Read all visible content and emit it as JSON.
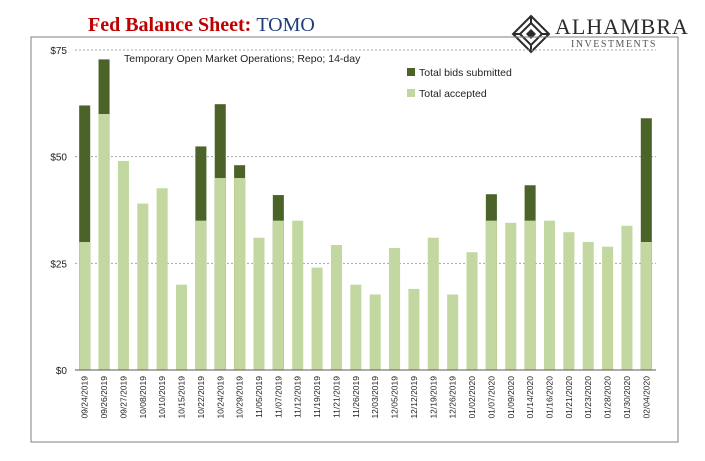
{
  "header": {
    "title_main": "Fed Balance Sheet",
    "title_sep": ": ",
    "title_sub": "TOMO"
  },
  "logo": {
    "brand": "ALHAMBRA",
    "tagline": "INVESTMENTS"
  },
  "colors": {
    "bids": "#4b6329",
    "accepted": "#c2d8a0",
    "title": "#c00000",
    "subtitle": "#1f3d7a"
  },
  "chart_data": {
    "type": "bar",
    "annotation": "Temporary Open Market Operations; Repo; 14-day",
    "legend_position": "top-center",
    "ylim": [
      0,
      75
    ],
    "yticks": [
      "$0",
      "$25",
      "$50",
      "$75"
    ],
    "ytick_values": [
      0,
      25,
      50,
      75
    ],
    "grid": true,
    "categories": [
      "09/24/2019",
      "09/26/2019",
      "09/27/2019",
      "10/08/2019",
      "10/10/2019",
      "10/15/2019",
      "10/22/2019",
      "10/24/2019",
      "10/29/2019",
      "11/05/2019",
      "11/07/2019",
      "11/12/2019",
      "11/19/2019",
      "11/21/2019",
      "11/26/2019",
      "12/03/2019",
      "12/05/2019",
      "12/12/2019",
      "12/19/2019",
      "12/26/2019",
      "01/02/2020",
      "01/07/2020",
      "01/09/2020",
      "01/14/2020",
      "01/16/2020",
      "01/21/2020",
      "01/23/2020",
      "01/28/2020",
      "01/30/2020",
      "02/04/2020"
    ],
    "series": [
      {
        "name": "Total bids submitted",
        "values": [
          62.0,
          72.8,
          49.0,
          39.0,
          42.6,
          20.0,
          52.4,
          62.3,
          48.0,
          31.0,
          41.0,
          35.0,
          24.0,
          29.3,
          20.0,
          17.7,
          28.6,
          19.0,
          31.0,
          17.7,
          27.6,
          41.2,
          34.5,
          43.3,
          35.0,
          32.3,
          30.0,
          28.9,
          33.8,
          59.0
        ]
      },
      {
        "name": "Total accepted",
        "values": [
          30.0,
          60.0,
          49.0,
          39.0,
          42.6,
          20.0,
          35.0,
          45.0,
          45.0,
          31.0,
          35.0,
          35.0,
          24.0,
          29.3,
          20.0,
          17.7,
          28.6,
          19.0,
          31.0,
          17.7,
          27.6,
          35.0,
          34.5,
          35.0,
          35.0,
          32.3,
          30.0,
          28.9,
          33.8,
          30.0
        ]
      }
    ]
  }
}
